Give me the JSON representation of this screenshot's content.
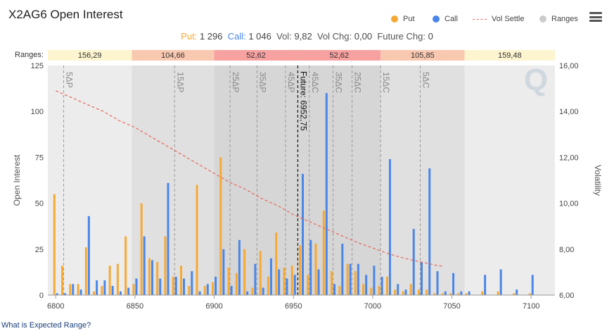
{
  "header": {
    "title": "X2AG6 Open Interest"
  },
  "legend": {
    "items": [
      {
        "label": "Put",
        "color": "#f7a935",
        "icon": "circle-icon"
      },
      {
        "label": "Call",
        "color": "#4a86e8",
        "icon": "circle-icon"
      },
      {
        "label": "Vol Settle",
        "color": "#e8675a",
        "icon": "dashed-line-icon"
      },
      {
        "label": "Ranges",
        "color": "#cccccc",
        "icon": "circle-icon"
      }
    ]
  },
  "menu": {
    "icon": "hamburger-menu-icon"
  },
  "stats": {
    "put_label": "Put:",
    "put_value": "1 296",
    "call_label": "Call:",
    "call_value": "1 046",
    "vol_label": "Vol:",
    "vol_value": "9,82",
    "volchg_label": "Vol Chg:",
    "volchg_value": "0,00",
    "futchg_label": "Future Chg:",
    "futchg_value": "0"
  },
  "ranges_label": "Ranges:",
  "footer": {
    "link": "What is Expected Range?"
  },
  "chart_data": {
    "type": "bar",
    "xlabel": "",
    "ylabel": "Open Interest",
    "y2label": "Volatility",
    "xlim": [
      6795,
      7115
    ],
    "xticks": [
      6800,
      6850,
      6900,
      6950,
      7000,
      7050,
      7100
    ],
    "ylim": [
      0,
      125
    ],
    "yticks": [
      0,
      25,
      50,
      75,
      100,
      125
    ],
    "y2lim": [
      6,
      16
    ],
    "y2ticks": [
      "6,00",
      "8,00",
      "10,00",
      "12,00",
      "14,00",
      "16,00"
    ],
    "ranges": [
      {
        "label": "156,29",
        "from": 6795,
        "to": 6848,
        "color": "#fdf5cf",
        "band": "#ececec"
      },
      {
        "label": "104,66",
        "from": 6848,
        "to": 6900,
        "color": "#f9c8b0",
        "band": "#e0e0e0"
      },
      {
        "label": "52,62",
        "from": 6900,
        "to": 6952.75,
        "color": "#f7a1a1",
        "band": "#d6d6d6"
      },
      {
        "label": "52,62",
        "from": 6952.75,
        "to": 7005,
        "color": "#f7a1a1",
        "band": "#d6d6d6"
      },
      {
        "label": "105,85",
        "from": 7005,
        "to": 7058,
        "color": "#f9c8b0",
        "band": "#e0e0e0"
      },
      {
        "label": "159,48",
        "from": 7058,
        "to": 7115,
        "color": "#fdf5cf",
        "band": "#ececec"
      }
    ],
    "delta_lines": [
      {
        "label": "5ΔP",
        "x": 6805
      },
      {
        "label": "15ΔP",
        "x": 6875
      },
      {
        "label": "25ΔP",
        "x": 6910
      },
      {
        "label": "35ΔP",
        "x": 6927
      },
      {
        "label": "45ΔP",
        "x": 6945
      },
      {
        "label": "45ΔC",
        "x": 6960
      },
      {
        "label": "35ΔC",
        "x": 6975
      },
      {
        "label": "25ΔC",
        "x": 6987
      },
      {
        "label": "15ΔC",
        "x": 7005
      },
      {
        "label": "5ΔC",
        "x": 7030
      }
    ],
    "future": {
      "label": "Future: 6952,75",
      "x": 6952.75
    },
    "series": [
      {
        "name": "Put",
        "color": "#f7a935",
        "points": [
          [
            6800,
            55
          ],
          [
            6805,
            16
          ],
          [
            6810,
            6
          ],
          [
            6815,
            6
          ],
          [
            6820,
            26
          ],
          [
            6825,
            2
          ],
          [
            6830,
            5
          ],
          [
            6835,
            16
          ],
          [
            6840,
            17
          ],
          [
            6845,
            32
          ],
          [
            6850,
            6
          ],
          [
            6855,
            50
          ],
          [
            6860,
            20
          ],
          [
            6865,
            18
          ],
          [
            6870,
            32
          ],
          [
            6875,
            10
          ],
          [
            6880,
            16
          ],
          [
            6885,
            5
          ],
          [
            6890,
            60
          ],
          [
            6895,
            5
          ],
          [
            6900,
            7
          ],
          [
            6905,
            75
          ],
          [
            6910,
            15
          ],
          [
            6915,
            12
          ],
          [
            6920,
            25
          ],
          [
            6925,
            4
          ],
          [
            6930,
            24
          ],
          [
            6935,
            10
          ],
          [
            6940,
            34
          ],
          [
            6945,
            15
          ],
          [
            6950,
            16
          ],
          [
            6955,
            27
          ],
          [
            6960,
            11
          ],
          [
            6965,
            28
          ],
          [
            6970,
            46
          ],
          [
            6975,
            13
          ],
          [
            6980,
            5
          ],
          [
            6985,
            17
          ],
          [
            6990,
            13
          ],
          [
            6995,
            6
          ],
          [
            7000,
            4
          ],
          [
            7005,
            5
          ],
          [
            7010,
            10
          ],
          [
            7015,
            3
          ],
          [
            7020,
            2
          ],
          [
            7025,
            6
          ],
          [
            7030,
            3
          ],
          [
            7035,
            3
          ],
          [
            7040,
            1
          ],
          [
            7045,
            1
          ],
          [
            7050,
            1
          ],
          [
            7055,
            1
          ],
          [
            7060,
            1
          ],
          [
            7070,
            2
          ],
          [
            7080,
            2
          ],
          [
            7090,
            1
          ],
          [
            7100,
            1
          ]
        ]
      },
      {
        "name": "Call",
        "color": "#4a86e8",
        "points": [
          [
            6800,
            1
          ],
          [
            6805,
            1
          ],
          [
            6810,
            6
          ],
          [
            6815,
            3
          ],
          [
            6820,
            43
          ],
          [
            6825,
            8
          ],
          [
            6830,
            8
          ],
          [
            6835,
            5
          ],
          [
            6840,
            2
          ],
          [
            6845,
            4
          ],
          [
            6850,
            9
          ],
          [
            6855,
            32
          ],
          [
            6860,
            19
          ],
          [
            6865,
            9
          ],
          [
            6870,
            61
          ],
          [
            6875,
            10
          ],
          [
            6880,
            9
          ],
          [
            6885,
            13
          ],
          [
            6890,
            2
          ],
          [
            6895,
            6
          ],
          [
            6900,
            10
          ],
          [
            6905,
            25
          ],
          [
            6910,
            5
          ],
          [
            6915,
            30
          ],
          [
            6920,
            2
          ],
          [
            6925,
            17
          ],
          [
            6930,
            4
          ],
          [
            6935,
            20
          ],
          [
            6940,
            14
          ],
          [
            6945,
            9
          ],
          [
            6950,
            11
          ],
          [
            6955,
            66
          ],
          [
            6960,
            30
          ],
          [
            6965,
            14
          ],
          [
            6970,
            110
          ],
          [
            6975,
            6
          ],
          [
            6980,
            28
          ],
          [
            6985,
            17
          ],
          [
            6990,
            17
          ],
          [
            6995,
            11
          ],
          [
            7000,
            16
          ],
          [
            7005,
            10
          ],
          [
            7010,
            74
          ],
          [
            7015,
            6
          ],
          [
            7020,
            3
          ],
          [
            7025,
            36
          ],
          [
            7030,
            18
          ],
          [
            7035,
            69
          ],
          [
            7040,
            13
          ],
          [
            7045,
            2
          ],
          [
            7050,
            12
          ],
          [
            7055,
            2
          ],
          [
            7060,
            2
          ],
          [
            7070,
            11
          ],
          [
            7080,
            14
          ],
          [
            7090,
            3
          ],
          [
            7100,
            11
          ]
        ]
      },
      {
        "name": "Vol Settle",
        "color": "#e8675a",
        "points": [
          [
            6800,
            14.9
          ],
          [
            6810,
            14.6
          ],
          [
            6820,
            14.3
          ],
          [
            6830,
            14.0
          ],
          [
            6840,
            13.6
          ],
          [
            6850,
            13.3
          ],
          [
            6860,
            12.9
          ],
          [
            6870,
            12.5
          ],
          [
            6880,
            12.1
          ],
          [
            6890,
            11.7
          ],
          [
            6900,
            11.3
          ],
          [
            6910,
            10.9
          ],
          [
            6920,
            10.6
          ],
          [
            6930,
            10.2
          ],
          [
            6940,
            9.9
          ],
          [
            6950,
            9.5
          ],
          [
            6960,
            9.2
          ],
          [
            6970,
            8.9
          ],
          [
            6980,
            8.6
          ],
          [
            6990,
            8.3
          ],
          [
            7000,
            8.05
          ],
          [
            7010,
            7.8
          ],
          [
            7020,
            7.6
          ],
          [
            7030,
            7.45
          ],
          [
            7040,
            7.3
          ],
          [
            7045,
            7.25
          ]
        ]
      }
    ],
    "watermark": "Q"
  }
}
